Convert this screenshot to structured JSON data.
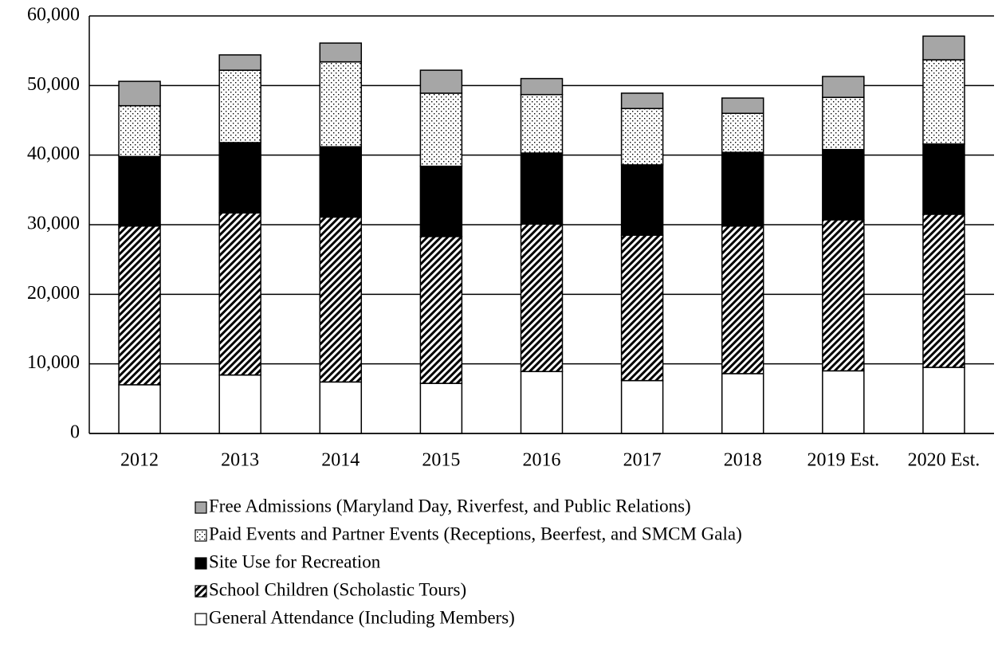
{
  "chart_data": {
    "type": "stacked_bar",
    "categories": [
      "2012",
      "2013",
      "2014",
      "2015",
      "2016",
      "2017",
      "2018",
      "2019 Est.",
      "2020 Est."
    ],
    "series": [
      {
        "name": "General Attendance (Including Members)",
        "color": "#ffffff",
        "pattern": "solid",
        "values": [
          7000,
          8400,
          7400,
          7200,
          8900,
          7600,
          8600,
          9000,
          9500
        ]
      },
      {
        "name": "School Children (Scholastic Tours)",
        "color": "#000000",
        "pattern": "hatch",
        "values": [
          22800,
          23300,
          23700,
          21100,
          21200,
          20900,
          21200,
          21700,
          22000
        ]
      },
      {
        "name": "Site Use for Recreation",
        "color": "#000000",
        "pattern": "solid",
        "values": [
          10000,
          10100,
          10100,
          10100,
          10200,
          10100,
          10600,
          10100,
          10100
        ]
      },
      {
        "name": "Paid Events and Partner Events (Receptions, Beerfest, and SMCM Gala)",
        "color": "#000000",
        "pattern": "dots",
        "values": [
          7300,
          10400,
          12200,
          10500,
          8400,
          8100,
          5600,
          7500,
          12100
        ]
      },
      {
        "name": "Free Admissions (Maryland Day, Riverfest, and Public Relations)",
        "color": "#a6a6a6",
        "pattern": "solid",
        "values": [
          3500,
          2200,
          2700,
          3300,
          2300,
          2200,
          2200,
          3000,
          3400
        ]
      }
    ],
    "ylim": [
      0,
      60000
    ],
    "yticks": [
      {
        "value": 0,
        "label": "0"
      },
      {
        "value": 10000,
        "label": "10,000"
      },
      {
        "value": 20000,
        "label": "20,000"
      },
      {
        "value": 30000,
        "label": "30,000"
      },
      {
        "value": 40000,
        "label": "40,000"
      },
      {
        "value": 50000,
        "label": "50,000"
      },
      {
        "value": 60000,
        "label": "60,000"
      }
    ],
    "grid": true,
    "legend": "bottom"
  }
}
